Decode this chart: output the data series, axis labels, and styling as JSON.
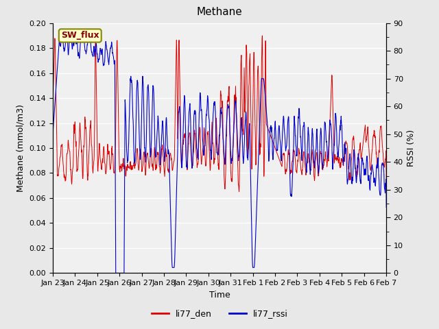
{
  "title": "Methane",
  "xlabel": "Time",
  "ylabel_left": "Methane (mmol/m3)",
  "ylabel_right": "RSSI (%)",
  "ylim_left": [
    0.0,
    0.2
  ],
  "ylim_right": [
    0,
    90
  ],
  "yticks_left": [
    0.0,
    0.02,
    0.04,
    0.06,
    0.08,
    0.1,
    0.12,
    0.14,
    0.16,
    0.18,
    0.2
  ],
  "yticks_right_major": [
    0,
    10,
    20,
    30,
    40,
    50,
    60,
    70,
    80,
    90
  ],
  "yticks_right_minor": [
    5,
    15,
    25,
    35,
    45,
    55,
    65,
    75,
    85
  ],
  "xtick_labels": [
    "Jan 23",
    "Jan 24",
    "Jan 25",
    "Jan 26",
    "Jan 27",
    "Jan 28",
    "Jan 29",
    "Jan 30",
    "Jan 31",
    "Feb 1",
    "Feb 2",
    "Feb 3",
    "Feb 4",
    "Feb 5",
    "Feb 6",
    "Feb 7"
  ],
  "legend_labels": [
    "li77_den",
    "li77_rssi"
  ],
  "legend_colors": [
    "#dd0000",
    "#0000cc"
  ],
  "sw_flux_label": "SW_flux",
  "sw_flux_bg": "#ffffcc",
  "sw_flux_border": "#888800",
  "sw_flux_text_color": "#880000",
  "figure_bg": "#e8e8e8",
  "plot_bg": "#f0f0f0",
  "line_color_den": "#dd0000",
  "line_color_rssi": "#0000cc",
  "grid_color": "#ffffff",
  "title_fontsize": 11,
  "axis_label_fontsize": 9,
  "tick_fontsize": 8,
  "legend_fontsize": 9
}
